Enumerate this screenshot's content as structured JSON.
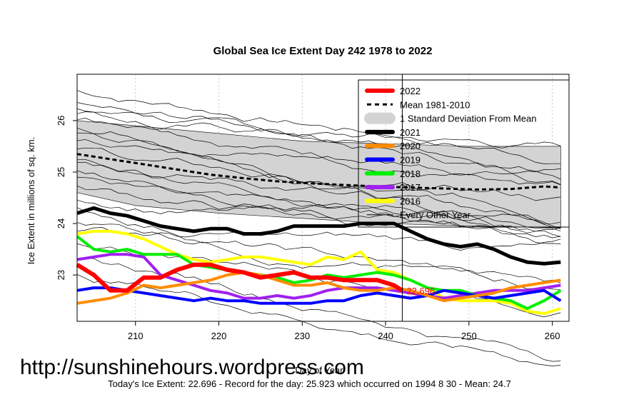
{
  "chart_data": {
    "type": "line",
    "title": "Global Sea Ice Extent Day 242 1978 to 2022",
    "xlabel": "Day of Year",
    "ylabel": "Ice Extent in millions of sq. km.",
    "xlim": [
      203,
      262
    ],
    "ylim": [
      22.1,
      26.9
    ],
    "xticks": [
      210,
      220,
      230,
      240,
      250,
      260
    ],
    "yticks": [
      23,
      24,
      25,
      26
    ],
    "current_day": 242,
    "current_value_label": "22.696",
    "legend": [
      {
        "label": "2022",
        "color": "#ff0000",
        "style": "thick"
      },
      {
        "label": "Mean 1981-2010",
        "color": "#000000",
        "style": "dashed"
      },
      {
        "label": "1 Standard Deviation From Mean",
        "color": "#d3d3d3",
        "style": "band"
      },
      {
        "label": "2021",
        "color": "#000000",
        "style": "thick"
      },
      {
        "label": "2020",
        "color": "#ff8c00",
        "style": "thick"
      },
      {
        "label": "2019",
        "color": "#0000ff",
        "style": "thick"
      },
      {
        "label": "2018",
        "color": "#00ee00",
        "style": "thick"
      },
      {
        "label": "2017",
        "color": "#a020f0",
        "style": "thick"
      },
      {
        "label": "2016",
        "color": "#ffff00",
        "style": "thick"
      },
      {
        "label": "Every Other Year",
        "color": "#000000",
        "style": "thin"
      }
    ],
    "series": [
      {
        "name": "2022",
        "color": "#ff0000",
        "width": 6,
        "x": [
          203,
          205,
          207,
          209,
          211,
          213,
          215,
          217,
          219,
          221,
          223,
          225,
          227,
          229,
          231,
          233,
          235,
          237,
          239,
          241,
          242
        ],
        "y": [
          23.2,
          23.0,
          22.7,
          22.7,
          22.95,
          22.95,
          23.1,
          23.2,
          23.2,
          23.1,
          23.05,
          22.95,
          23.0,
          23.05,
          22.95,
          22.95,
          22.9,
          22.9,
          22.9,
          22.8,
          22.7
        ]
      },
      {
        "name": "Mean 1981-2010",
        "color": "#000000",
        "width": 3,
        "dash": "6,4",
        "x": [
          203,
          207,
          211,
          215,
          219,
          223,
          227,
          231,
          235,
          239,
          243,
          247,
          251,
          255,
          259,
          261
        ],
        "y": [
          25.35,
          25.25,
          25.15,
          25.05,
          24.95,
          24.88,
          24.82,
          24.78,
          24.75,
          24.72,
          24.7,
          24.68,
          24.66,
          24.67,
          24.72,
          24.7
        ]
      },
      {
        "name": "2021",
        "color": "#000000",
        "width": 5,
        "x": [
          203,
          205,
          207,
          209,
          211,
          213,
          215,
          217,
          219,
          221,
          223,
          225,
          227,
          229,
          231,
          233,
          235,
          237,
          239,
          241,
          243,
          245,
          247,
          249,
          251,
          253,
          255,
          257,
          259,
          261
        ],
        "y": [
          24.2,
          24.3,
          24.2,
          24.15,
          24.05,
          23.95,
          23.9,
          23.85,
          23.9,
          23.9,
          23.8,
          23.8,
          23.85,
          23.95,
          23.95,
          23.95,
          23.95,
          24.0,
          24.0,
          24.0,
          23.85,
          23.7,
          23.6,
          23.55,
          23.6,
          23.5,
          23.35,
          23.25,
          23.22,
          23.25
        ]
      },
      {
        "name": "2020",
        "color": "#ff8c00",
        "width": 4,
        "x": [
          203,
          205,
          207,
          209,
          211,
          213,
          215,
          217,
          219,
          221,
          223,
          225,
          227,
          229,
          231,
          233,
          235,
          237,
          239,
          241,
          243,
          245,
          247,
          249,
          251,
          253,
          255,
          257,
          259,
          261
        ],
        "y": [
          22.45,
          22.5,
          22.55,
          22.65,
          22.8,
          22.75,
          22.8,
          22.85,
          22.9,
          23.0,
          23.05,
          23.0,
          22.9,
          22.8,
          22.8,
          22.85,
          22.75,
          22.7,
          22.7,
          22.75,
          22.7,
          22.6,
          22.5,
          22.55,
          22.6,
          22.65,
          22.75,
          22.8,
          22.85,
          22.9
        ]
      },
      {
        "name": "2019",
        "color": "#0000ff",
        "width": 4,
        "x": [
          203,
          205,
          207,
          209,
          211,
          213,
          215,
          217,
          219,
          221,
          223,
          225,
          227,
          229,
          231,
          233,
          235,
          237,
          239,
          241,
          243,
          245,
          247,
          249,
          251,
          253,
          255,
          257,
          259,
          261
        ],
        "y": [
          22.7,
          22.75,
          22.75,
          22.7,
          22.65,
          22.6,
          22.55,
          22.5,
          22.55,
          22.5,
          22.5,
          22.45,
          22.45,
          22.45,
          22.45,
          22.5,
          22.5,
          22.6,
          22.65,
          22.6,
          22.55,
          22.6,
          22.7,
          22.65,
          22.6,
          22.55,
          22.6,
          22.65,
          22.7,
          22.5
        ]
      },
      {
        "name": "2018",
        "color": "#00ee00",
        "width": 4,
        "x": [
          203,
          205,
          207,
          209,
          211,
          213,
          215,
          217,
          219,
          221,
          223,
          225,
          227,
          229,
          231,
          233,
          235,
          237,
          239,
          241,
          243,
          245,
          247,
          249,
          251,
          253,
          255,
          257,
          259,
          261
        ],
        "y": [
          23.75,
          23.5,
          23.45,
          23.5,
          23.4,
          23.4,
          23.4,
          23.2,
          23.15,
          23.1,
          23.05,
          23.0,
          22.95,
          22.85,
          22.9,
          23.0,
          22.95,
          23.0,
          23.05,
          23.0,
          22.9,
          22.75,
          22.7,
          22.7,
          22.6,
          22.55,
          22.5,
          22.35,
          22.5,
          22.7
        ]
      },
      {
        "name": "2017",
        "color": "#a020f0",
        "width": 4,
        "x": [
          203,
          205,
          207,
          209,
          211,
          213,
          215,
          217,
          219,
          221,
          223,
          225,
          227,
          229,
          231,
          233,
          235,
          237,
          239,
          241,
          243,
          245,
          247,
          249,
          251,
          253,
          255,
          257,
          259,
          261
        ],
        "y": [
          23.3,
          23.35,
          23.4,
          23.4,
          23.35,
          23.0,
          22.9,
          22.8,
          22.7,
          22.65,
          22.55,
          22.55,
          22.6,
          22.55,
          22.6,
          22.7,
          22.75,
          22.75,
          22.75,
          22.7,
          22.65,
          22.6,
          22.55,
          22.6,
          22.65,
          22.7,
          22.7,
          22.7,
          22.75,
          22.8
        ]
      },
      {
        "name": "2016",
        "color": "#ffff00",
        "width": 4,
        "x": [
          203,
          205,
          207,
          209,
          211,
          213,
          215,
          217,
          219,
          221,
          223,
          225,
          227,
          229,
          231,
          233,
          235,
          237,
          239,
          241,
          243,
          245,
          247,
          249,
          251,
          253,
          255,
          257,
          259,
          261
        ],
        "y": [
          23.8,
          23.85,
          23.85,
          23.8,
          23.7,
          23.55,
          23.4,
          23.3,
          23.25,
          23.3,
          23.35,
          23.35,
          23.3,
          23.25,
          23.2,
          23.35,
          23.3,
          23.45,
          23.1,
          23.05,
          22.9,
          22.75,
          22.55,
          22.5,
          22.5,
          22.5,
          22.45,
          22.3,
          22.25,
          22.35
        ]
      }
    ],
    "std_band": {
      "x": [
        203,
        210,
        220,
        230,
        240,
        250,
        261
      ],
      "upper": [
        26.0,
        25.9,
        25.75,
        25.6,
        25.55,
        25.5,
        25.5
      ],
      "lower": [
        24.6,
        24.35,
        24.2,
        24.1,
        24.0,
        23.95,
        23.92
      ]
    }
  },
  "watermark": "http://sunshinehours.wordpress.com",
  "footer": "Today's Ice Extent: 22.696  - Record for the day: 25.923 which occurred on 1994 8 30  - Mean: 24.7"
}
